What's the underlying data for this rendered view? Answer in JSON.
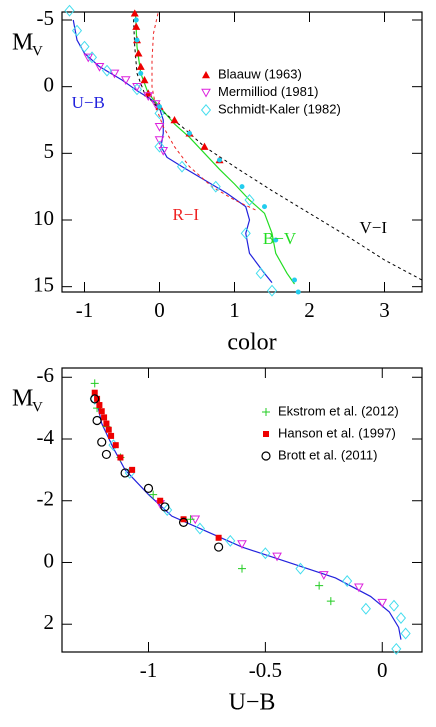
{
  "chart_data": [
    {
      "type": "line-scatter",
      "xlabel": "color",
      "ylabel": "M",
      "ylabel_sub": "V",
      "xlim": [
        -1.3,
        3.5
      ],
      "ylim": [
        -5.6,
        15.4
      ],
      "y_inverted": true,
      "xticks": [
        -1,
        0,
        1,
        2,
        3
      ],
      "yticks": [
        -5,
        0,
        5,
        10,
        15
      ],
      "legend": "upper right",
      "annotations": [
        {
          "text": "U−B",
          "color": "#2222dd"
        },
        {
          "text": "R−I",
          "color": "#ee2222"
        },
        {
          "text": "B−V",
          "color": "#22dd22"
        },
        {
          "text": "V−I",
          "color": "#000000"
        }
      ],
      "series": [
        {
          "style": "solid",
          "color": "#2222dd",
          "x": [
            -1.15,
            -1.1,
            -1.0,
            -0.8,
            -0.5,
            -0.3,
            -0.1,
            0,
            0.05,
            0.05,
            0.02,
            0.1,
            0.3,
            0.6,
            0.9,
            1.15,
            1.2,
            1.15,
            1.2,
            1.4,
            1.5
          ],
          "values": [
            -5,
            -3.5,
            -2.5,
            -1.5,
            -0.5,
            0.3,
            1,
            1.6,
            2.5,
            3.5,
            4.5,
            5.3,
            6,
            7,
            8,
            9,
            10,
            11,
            12.5,
            14,
            14.7
          ]
        },
        {
          "style": "solid",
          "color": "#22dd22",
          "x": [
            -0.32,
            -0.3,
            -0.25,
            -0.15,
            0,
            0.2,
            0.4,
            0.6,
            0.8,
            1.0,
            1.2,
            1.4,
            1.5,
            1.55,
            1.7,
            1.8
          ],
          "values": [
            -5.5,
            -3,
            -1,
            0.5,
            1.5,
            2.8,
            3.8,
            5,
            6.2,
            7.3,
            8.5,
            9.5,
            11,
            12.5,
            14,
            14.8
          ]
        },
        {
          "style": "dotted",
          "color": "#ee2222",
          "x": [
            -0.02,
            -0.08,
            -0.1,
            -0.1,
            -0.05,
            0.05,
            0.2,
            0.4,
            0.7,
            1.0,
            1.3
          ],
          "values": [
            -5.5,
            -4,
            -2,
            0,
            1.5,
            3,
            4.5,
            6,
            7.5,
            8.5,
            9.3
          ]
        },
        {
          "style": "dotted",
          "color": "#000000",
          "x": [
            -0.35,
            -0.33,
            -0.3,
            -0.2,
            0,
            0.3,
            0.6,
            1,
            1.5,
            2,
            2.5,
            3,
            3.5
          ],
          "values": [
            -5.5,
            -3,
            -1,
            0.5,
            1.7,
            3,
            4.5,
            6,
            7.8,
            9.5,
            11.2,
            13,
            14.5
          ]
        },
        {
          "name": "Blaauw (1963)",
          "marker": "triangle-up",
          "color": "#ee0000",
          "x": [
            -0.33,
            -0.31,
            -0.3,
            -0.28,
            -0.25,
            -0.2,
            -0.15,
            0,
            0.2,
            0.4,
            0.6,
            0.8
          ],
          "values": [
            -5.5,
            -4.5,
            -3.5,
            -2.5,
            -1.5,
            -0.5,
            0.5,
            1.5,
            2.5,
            3.5,
            4.5,
            5.5
          ]
        },
        {
          "name": "Mermilliod (1981)",
          "marker": "triangle-down",
          "color": "#dd22dd",
          "x": [
            -0.95,
            -0.8,
            -0.6,
            -0.45,
            -0.3,
            -0.15,
            -0.05,
            0,
            0,
            0.05
          ],
          "values": [
            -2.2,
            -1.5,
            -1,
            -0.5,
            0,
            0.7,
            1.3,
            3,
            4,
            4.8
          ]
        },
        {
          "name": "Schmidt-Kaler (1982)",
          "marker": "diamond",
          "color": "#44ddee",
          "x": [
            -1.2,
            -1.1,
            -1.0,
            -0.9,
            -0.7,
            -0.3,
            0,
            0,
            0.3,
            0.75,
            1.2,
            1.15,
            1.35,
            1.5
          ],
          "values": [
            -5.7,
            -4.2,
            -3,
            -2.2,
            -1.2,
            0.2,
            2,
            4.5,
            6,
            7.5,
            8.5,
            11,
            14,
            15.3
          ]
        },
        {
          "marker": "dot",
          "color": "#22ccee",
          "x": [
            -0.31,
            -0.3,
            -0.25,
            0,
            0.4,
            0.8,
            1.1,
            1.4,
            1.55,
            1.8,
            1.85
          ],
          "values": [
            -5,
            -3.5,
            -1,
            1.5,
            3.5,
            5.5,
            7.5,
            9,
            11.5,
            14.5,
            15.4
          ]
        }
      ]
    },
    {
      "type": "line-scatter",
      "xlabel": "U−B",
      "ylabel": "M",
      "ylabel_sub": "V",
      "xlim": [
        -1.37,
        0.17
      ],
      "ylim": [
        -6.3,
        2.9
      ],
      "y_inverted": true,
      "xticks": [
        -1,
        -0.5,
        0
      ],
      "yticks": [
        -6,
        -4,
        -2,
        0,
        2
      ],
      "legend": "upper right",
      "series": [
        {
          "style": "solid",
          "color": "#2222dd",
          "x": [
            -1.23,
            -1.2,
            -1.15,
            -1.1,
            -1.0,
            -0.9,
            -0.75,
            -0.6,
            -0.4,
            -0.2,
            -0.05,
            0.03,
            0.07,
            0.08
          ],
          "values": [
            -5.5,
            -4.5,
            -3.7,
            -3,
            -2.2,
            -1.5,
            -1,
            -0.5,
            0,
            0.5,
            1.1,
            1.6,
            2.1,
            2.5
          ]
        },
        {
          "marker": "diamond",
          "color": "#44ddee",
          "x": [
            -1.23,
            -1.15,
            -1.08,
            -0.92,
            -0.78,
            -0.65,
            -0.5,
            -0.35,
            -0.15,
            0.05,
            0.08,
            0.1,
            0.06,
            -0.07
          ],
          "values": [
            -5.3,
            -3.8,
            -2.9,
            -1.7,
            -1.1,
            -0.7,
            -0.3,
            0.2,
            0.6,
            1.4,
            1.8,
            2.3,
            2.8,
            1.5
          ]
        },
        {
          "marker": "triangle-down",
          "color": "#dd22dd",
          "x": [
            -0.95,
            -0.8,
            -0.6,
            -0.45,
            -0.25,
            -0.1,
            0
          ],
          "values": [
            -1.9,
            -1.4,
            -0.6,
            -0.2,
            0.4,
            0.8,
            1.3
          ]
        },
        {
          "name": "Ekstrom et al. (2012)",
          "marker": "plus",
          "color": "#22cc22",
          "x": [
            -1.23,
            -1.22,
            -1.18,
            -1.12,
            -0.98,
            -0.82,
            -0.6,
            -0.27,
            -0.22
          ],
          "values": [
            -5.8,
            -5,
            -4.4,
            -3.4,
            -2.2,
            -1.4,
            0.2,
            0.75,
            1.25
          ]
        },
        {
          "name": "Hanson et al. (1997)",
          "marker": "square",
          "color": "#ee0000",
          "x": [
            -1.23,
            -1.22,
            -1.21,
            -1.2,
            -1.19,
            -1.18,
            -1.17,
            -1.16,
            -1.14,
            -1.12,
            -1.07,
            -0.95,
            -0.85,
            -0.7
          ],
          "values": [
            -5.5,
            -5.3,
            -5.1,
            -4.9,
            -4.7,
            -4.5,
            -4.3,
            -4.1,
            -3.8,
            -3.4,
            -3,
            -2,
            -1.4,
            -0.8
          ]
        },
        {
          "name": "Brott et al. (2011)",
          "marker": "circle",
          "color": "#000000",
          "x": [
            -1.23,
            -1.22,
            -1.2,
            -1.18,
            -1.1,
            -1.0,
            -0.93,
            -0.85,
            -0.7
          ],
          "values": [
            -5.3,
            -4.6,
            -3.9,
            -3.5,
            -2.9,
            -2.4,
            -1.8,
            -1.3,
            -0.5
          ]
        }
      ]
    }
  ]
}
